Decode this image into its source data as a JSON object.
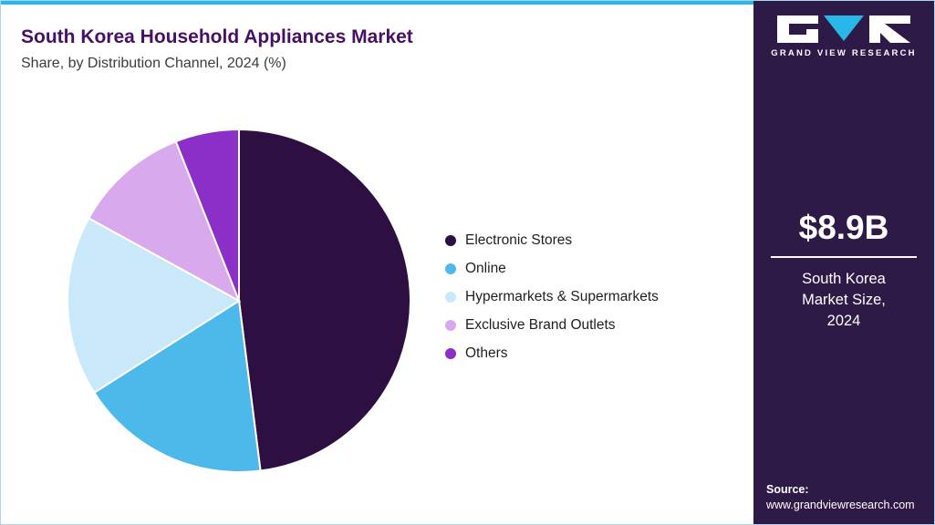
{
  "header": {
    "title": "South Korea Household Appliances Market",
    "subtitle": "Share, by Distribution Channel, 2024 (%)"
  },
  "chart_data": {
    "type": "pie",
    "title": "South Korea Household Appliances Market Share, by Distribution Channel, 2024 (%)",
    "unit": "%",
    "direction": "clockwise",
    "start_angle": "top",
    "legend_position": "right",
    "slices": [
      {
        "label": "Electronic Stores",
        "value": 48,
        "color": "#2d0f42"
      },
      {
        "label": "Online",
        "value": 18,
        "color": "#4db9ea"
      },
      {
        "label": "Hypermarkets & Supermarkets",
        "value": 17,
        "color": "#c9e9fb"
      },
      {
        "label": "Exclusive Brand Outlets",
        "value": 11,
        "color": "#d9a9ee"
      },
      {
        "label": "Others",
        "value": 6,
        "color": "#8c2fc7"
      }
    ]
  },
  "sidebar": {
    "brand_name": "GRAND VIEW RESEARCH",
    "market_size_value": "$8.9B",
    "market_size_label": "South Korea Market Size, 2024",
    "source_label": "Source:",
    "source_url": "www.grandviewresearch.com",
    "background_color": "#2e1a47",
    "accent_color": "#29b6e8"
  }
}
